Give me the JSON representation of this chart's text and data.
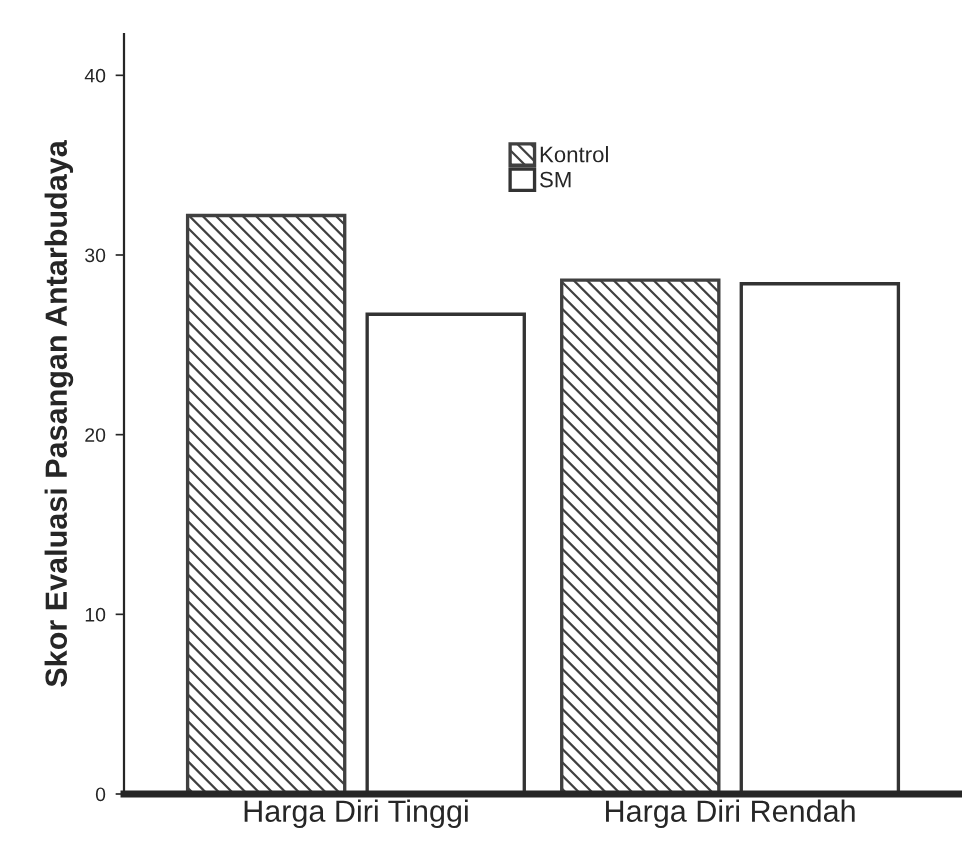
{
  "chart_data": {
    "type": "bar",
    "ylabel": "Skor Evaluasi Pasangan Antarbudaya",
    "categories": [
      "Harga Diri Tinggi",
      "Harga Diri Rendah"
    ],
    "series": [
      {
        "name": "Kontrol",
        "color": "#404040",
        "values": [
          32.2,
          28.6
        ]
      },
      {
        "name": "SM",
        "color": "#ffffff",
        "values": [
          26.7,
          28.4
        ]
      }
    ],
    "ylim": [
      0,
      42.3
    ],
    "yticks": [
      0,
      10,
      20,
      30,
      40
    ],
    "grid": false,
    "legend": "top"
  }
}
